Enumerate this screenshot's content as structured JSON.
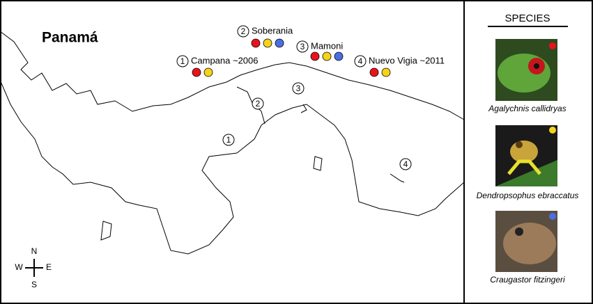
{
  "map": {
    "title": "Panamá",
    "sites": [
      {
        "number": "1",
        "label": "Campana ~2006",
        "colors": [
          "#e8141b",
          "#f5d31a"
        ]
      },
      {
        "number": "2",
        "label": "Soberania",
        "colors": [
          "#e8141b",
          "#f5d31a",
          "#4a6fe0"
        ]
      },
      {
        "number": "3",
        "label": "Mamoni",
        "colors": [
          "#e8141b",
          "#f5d31a",
          "#4a6fe0"
        ]
      },
      {
        "number": "4",
        "label": "Nuevo Vigia ~2011",
        "colors": [
          "#e8141b",
          "#f5d31a"
        ]
      }
    ],
    "compass": {
      "north": "N",
      "south": "S",
      "east": "E",
      "west": "W"
    }
  },
  "legend": {
    "title": "SPECIES",
    "species": [
      {
        "name": "Agalychnis callidryas",
        "color": "#e8141b"
      },
      {
        "name": "Dendropsophus ebraccatus",
        "color": "#f5d31a"
      },
      {
        "name": "Craugastor fitzingeri",
        "color": "#4a6fe0"
      }
    ]
  }
}
